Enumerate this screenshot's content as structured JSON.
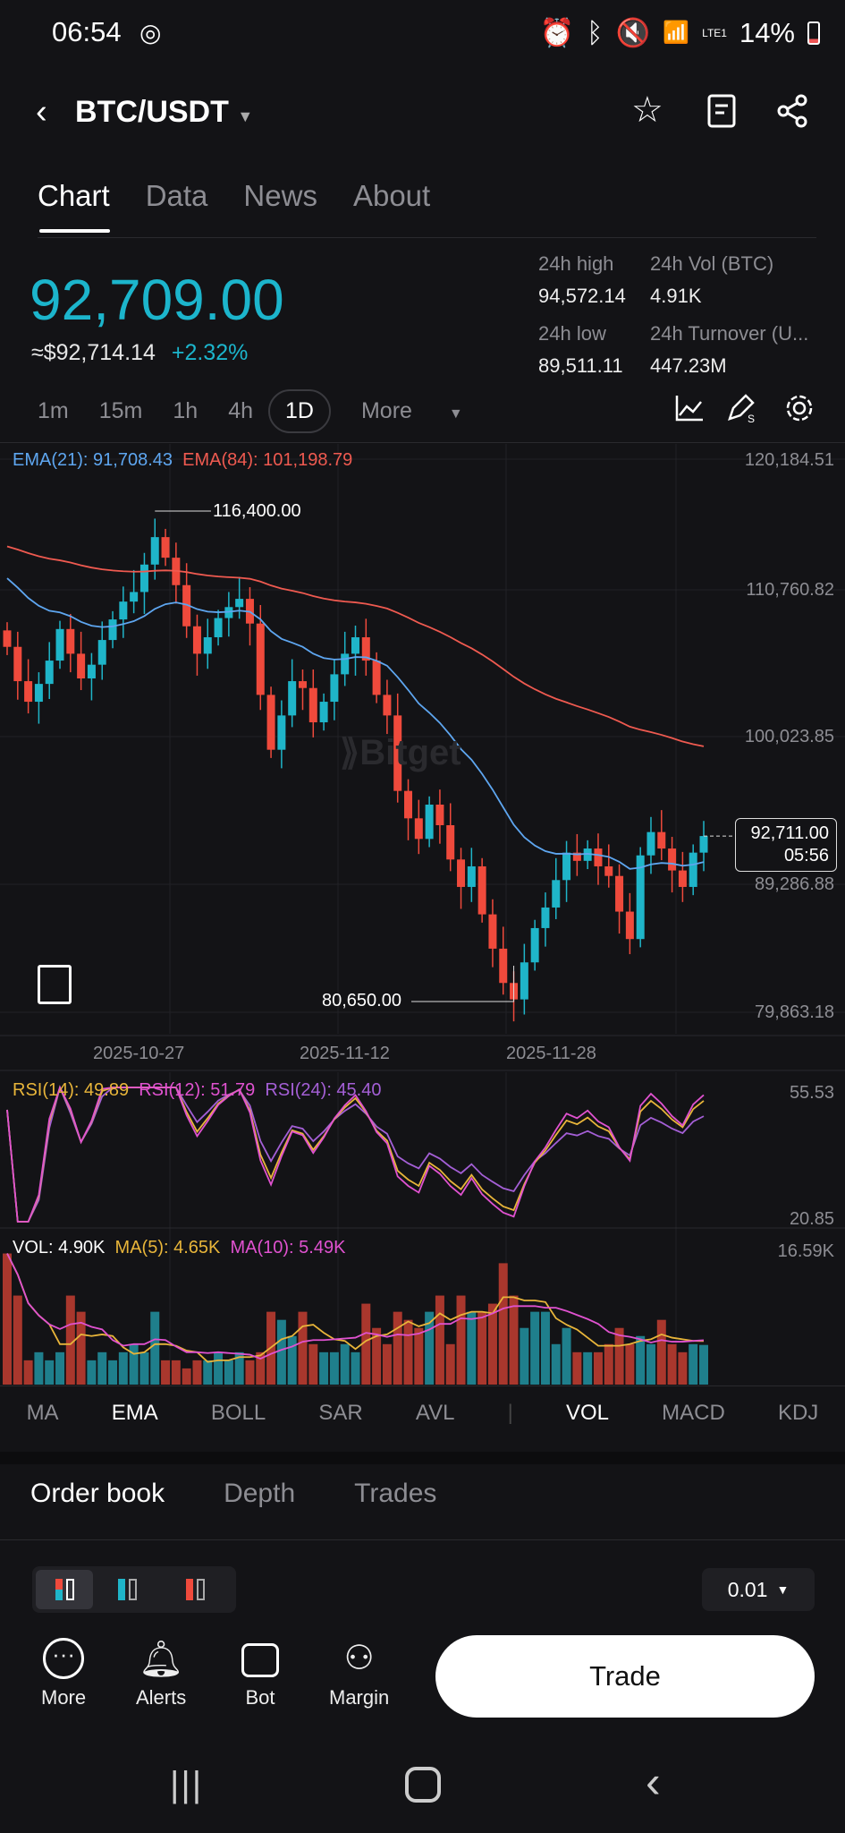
{
  "status": {
    "time": "06:54",
    "battery": "14%",
    "network": "LTE1"
  },
  "header": {
    "pair": "BTC/USDT"
  },
  "tabs": [
    "Chart",
    "Data",
    "News",
    "About"
  ],
  "ticker": {
    "price": "92,709.00",
    "usd": "≈$92,714.14",
    "change": "+2.32%",
    "high_label": "24h high",
    "high": "94,572.14",
    "low_label": "24h low",
    "low": "89,511.11",
    "vol_label": "24h Vol (BTC)",
    "vol": "4.91K",
    "turnover_label": "24h Turnover (U...",
    "turnover": "447.23M"
  },
  "timeframes": [
    "1m",
    "15m",
    "1h",
    "4h",
    "1D",
    "More"
  ],
  "chart": {
    "ema21": "EMA(21): 91,708.43",
    "ema84": "EMA(84): 101,198.79",
    "y_labels": [
      "120,184.51",
      "110,760.82",
      "100,023.85",
      "89,286.88",
      "79,863.18"
    ],
    "x_labels": [
      "2025-10-27",
      "2025-11-12",
      "2025-11-28"
    ],
    "high_mark": "116,400.00",
    "low_mark": "80,650.00",
    "last_price": "92,711.00",
    "countdown": "05:56",
    "watermark": "Bitget"
  },
  "rsi": {
    "rsi14": "RSI(14): 49.89",
    "rsi12": "RSI(12): 51.79",
    "rsi24": "RSI(24): 45.40",
    "max": "55.53",
    "min": "20.85"
  },
  "vol": {
    "vol": "VOL: 4.90K",
    "ma5": "MA(5): 4.65K",
    "ma10": "MA(10): 5.49K",
    "max": "16.59K"
  },
  "indicators": [
    "MA",
    "EMA",
    "BOLL",
    "SAR",
    "AVL",
    "VOL",
    "MACD",
    "KDJ"
  ],
  "orderbook": {
    "tabs": [
      "Order book",
      "Depth",
      "Trades"
    ],
    "precision": "0.01"
  },
  "bottom": {
    "more": "More",
    "alerts": "Alerts",
    "bot": "Bot",
    "margin": "Margin",
    "trade": "Trade"
  },
  "colors": {
    "up": "#1fb5c9",
    "down": "#ef4a3c",
    "ema21": "#5ea6f0",
    "ema84": "#ef5a50"
  },
  "chart_data": {
    "type": "candlestick",
    "ylim": [
      79863.18,
      120184.51
    ],
    "closes": [
      106500,
      104000,
      102500,
      103800,
      105500,
      107800,
      106000,
      104200,
      105200,
      107000,
      108500,
      109800,
      110500,
      112500,
      114500,
      113000,
      111000,
      108000,
      106000,
      107200,
      108600,
      109400,
      110000,
      108200,
      103000,
      99000,
      101500,
      104000,
      103500,
      101000,
      102500,
      104500,
      106000,
      107200,
      105500,
      103000,
      101500,
      96000,
      94000,
      92500,
      95000,
      93500,
      91000,
      89000,
      90500,
      87000,
      84500,
      82000,
      80800,
      83500,
      86000,
      87500,
      89500,
      91500,
      90900,
      91800,
      90500,
      89800,
      87200,
      85200,
      91300,
      93000,
      91800,
      90200,
      89000,
      91500,
      92711
    ],
    "volumes": [
      16.2,
      11,
      3,
      4,
      3,
      4,
      11,
      9,
      3,
      4,
      3,
      4,
      5,
      4,
      9,
      3,
      3,
      2,
      3,
      3,
      4,
      3,
      4,
      3,
      4,
      9,
      8,
      6,
      9,
      5,
      4,
      4,
      5,
      4,
      10,
      7,
      5,
      9,
      8,
      7,
      9,
      11,
      5,
      11,
      9,
      9,
      10,
      15,
      11,
      7,
      9,
      9,
      5,
      7,
      4,
      4,
      4,
      5,
      7,
      5,
      6,
      5,
      8,
      5,
      4,
      5,
      4.9
    ]
  }
}
